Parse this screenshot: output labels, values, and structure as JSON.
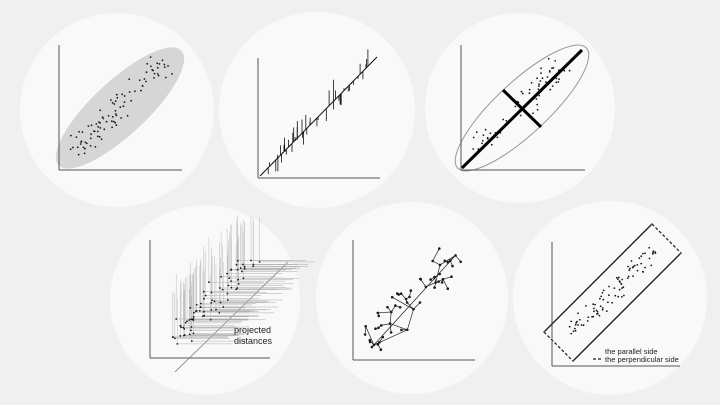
{
  "colors": {
    "background": "#f0f0f0",
    "circle": "#f9f9f9",
    "axis": "#555555",
    "point": "#1a1a1a",
    "ellipse_fill": "#d6d6d6",
    "line_gray": "#777777"
  },
  "panels": [
    {
      "id": "scatter-ellipse-panel",
      "description_icon": "filled-ellipse"
    },
    {
      "id": "regression-residuals-panel",
      "description_icon": "regression-line"
    },
    {
      "id": "principal-axes-panel",
      "description_icon": "crossed-axes"
    },
    {
      "id": "projected-distances-panel",
      "description_icon": "projection-lines"
    },
    {
      "id": "minimum-spanning-tree-panel",
      "description_icon": "tree-graph"
    },
    {
      "id": "bounding-rectangle-panel",
      "description_icon": "rotated-rectangle"
    }
  ],
  "labels": {
    "projected_line1": "projected",
    "projected_line2": "distances",
    "legend_parallel": "the parallel side",
    "legend_perpendicular": "the perpendicular side"
  }
}
